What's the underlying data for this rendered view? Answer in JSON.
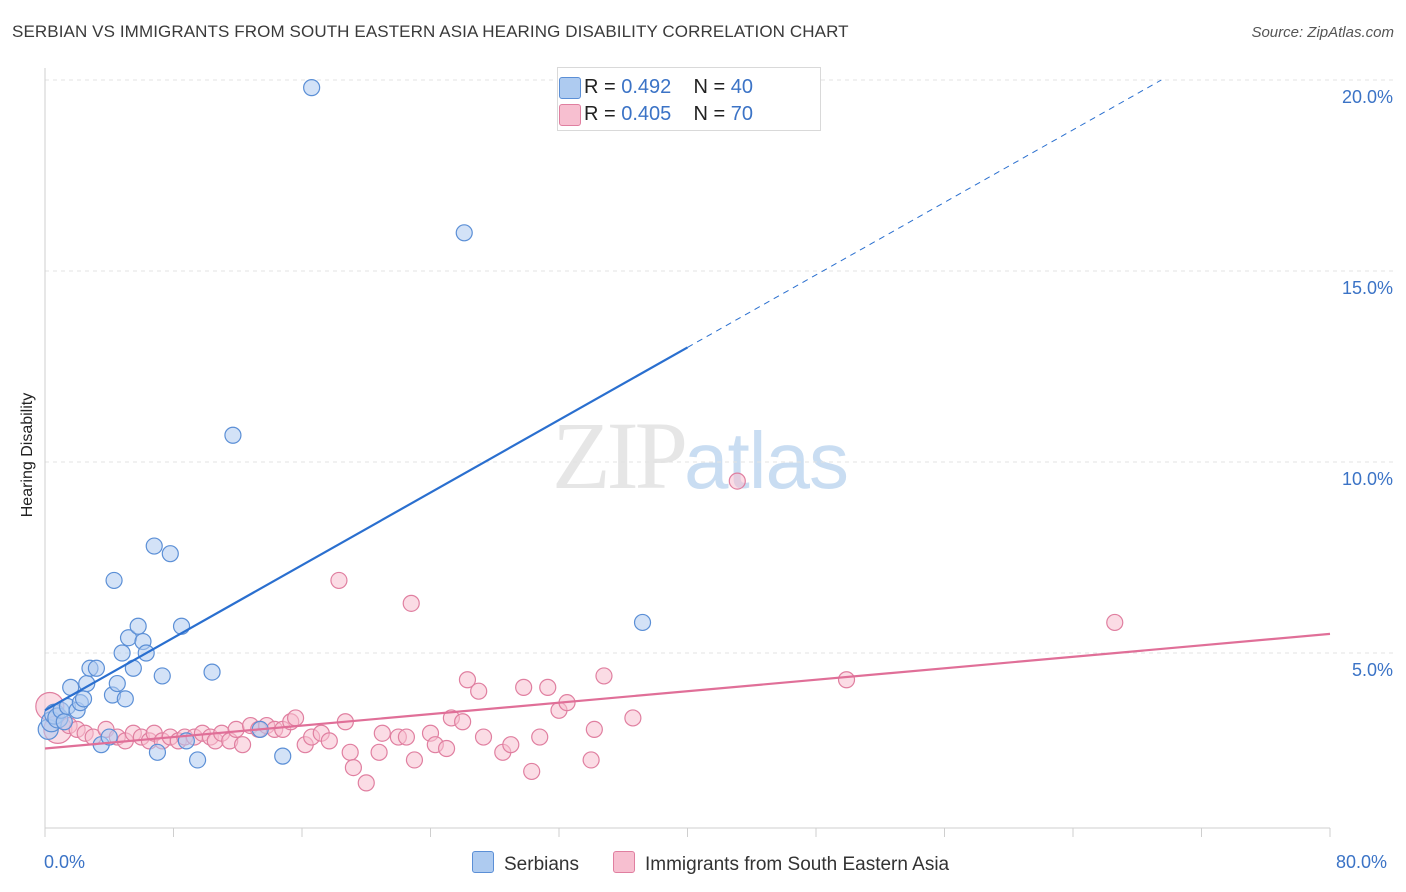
{
  "title": "SERBIAN VS IMMIGRANTS FROM SOUTH EASTERN ASIA HEARING DISABILITY CORRELATION CHART",
  "source": "Source: ZipAtlas.com",
  "watermark": {
    "zip": "ZIP",
    "atlas": "atlas"
  },
  "legend_top": [
    {
      "r_label": "R = ",
      "r_value": "0.492",
      "n_label": "N = ",
      "n_value": "40"
    },
    {
      "r_label": "R = ",
      "r_value": "0.405",
      "n_label": "N = ",
      "n_value": "70"
    }
  ],
  "legend_bottom": [
    "Serbians",
    "Immigrants from South Eastern Asia"
  ],
  "colors": {
    "serbians_fill": "#aecbf0",
    "serbians_stroke": "#5b8fd6",
    "serbians_line": "#2a6fcf",
    "sea_fill": "#f7bfd0",
    "sea_stroke": "#e07fa0",
    "sea_line": "#e06f98",
    "tick_text": "#3b73c6",
    "grid": "#e3e3e3"
  },
  "axes": {
    "ylabel": "Hearing Disability",
    "x_min_label": "0.0%",
    "x_max_label": "80.0%",
    "y_ticks": [
      "5.0%",
      "10.0%",
      "15.0%",
      "20.0%"
    ]
  },
  "chart_data": {
    "type": "scatter",
    "title": "SERBIAN VS IMMIGRANTS FROM SOUTH EASTERN ASIA HEARING DISABILITY CORRELATION CHART",
    "xlabel": "",
    "ylabel": "Hearing Disability",
    "xlim": [
      0,
      80
    ],
    "ylim": [
      0.5,
      20.5
    ],
    "y_gridlines": [
      5,
      10,
      15,
      20
    ],
    "grid": true,
    "legend_placement": "top-center",
    "series": [
      {
        "name": "Serbians",
        "r": 0.492,
        "n": 40,
        "trend": {
          "x0": 0,
          "y0": 3.5,
          "x1": 40,
          "y1": 13.0,
          "dashed_to_x": 69.5,
          "dashed_to_y": 20.0
        },
        "points": [
          [
            0.2,
            3.0
          ],
          [
            0.4,
            3.2
          ],
          [
            0.6,
            3.4
          ],
          [
            0.8,
            3.3
          ],
          [
            1.0,
            3.5
          ],
          [
            1.2,
            3.2
          ],
          [
            1.4,
            3.6
          ],
          [
            1.6,
            4.1
          ],
          [
            2.0,
            3.5
          ],
          [
            2.2,
            3.7
          ],
          [
            2.4,
            3.8
          ],
          [
            2.6,
            4.2
          ],
          [
            2.8,
            4.6
          ],
          [
            3.2,
            4.6
          ],
          [
            3.5,
            2.6
          ],
          [
            4.0,
            2.8
          ],
          [
            4.2,
            3.9
          ],
          [
            4.5,
            4.2
          ],
          [
            4.3,
            6.9
          ],
          [
            4.8,
            5.0
          ],
          [
            5.0,
            3.8
          ],
          [
            5.2,
            5.4
          ],
          [
            5.5,
            4.6
          ],
          [
            5.8,
            5.7
          ],
          [
            6.1,
            5.3
          ],
          [
            6.3,
            5.0
          ],
          [
            6.8,
            7.8
          ],
          [
            7.0,
            2.4
          ],
          [
            7.3,
            4.4
          ],
          [
            7.8,
            7.6
          ],
          [
            8.5,
            5.7
          ],
          [
            8.8,
            2.7
          ],
          [
            9.5,
            2.2
          ],
          [
            10.4,
            4.5
          ],
          [
            11.7,
            10.7
          ],
          [
            13.4,
            3.0
          ],
          [
            14.8,
            2.3
          ],
          [
            16.6,
            19.8
          ],
          [
            26.1,
            16.0
          ],
          [
            37.2,
            5.8
          ]
        ]
      },
      {
        "name": "Immigrants from South Eastern Asia",
        "r": 0.405,
        "n": 70,
        "trend": {
          "x0": 0,
          "y0": 2.5,
          "x1": 80,
          "y1": 5.5
        },
        "points": [
          [
            0.3,
            3.6
          ],
          [
            0.8,
            3.0
          ],
          [
            1.5,
            3.1
          ],
          [
            2.0,
            3.0
          ],
          [
            2.5,
            2.9
          ],
          [
            3.0,
            2.8
          ],
          [
            3.8,
            3.0
          ],
          [
            4.5,
            2.8
          ],
          [
            5.0,
            2.7
          ],
          [
            5.5,
            2.9
          ],
          [
            6.0,
            2.8
          ],
          [
            6.5,
            2.7
          ],
          [
            6.8,
            2.9
          ],
          [
            7.3,
            2.7
          ],
          [
            7.8,
            2.8
          ],
          [
            8.3,
            2.7
          ],
          [
            8.7,
            2.8
          ],
          [
            9.3,
            2.8
          ],
          [
            9.8,
            2.9
          ],
          [
            10.3,
            2.8
          ],
          [
            10.6,
            2.7
          ],
          [
            11.0,
            2.9
          ],
          [
            11.5,
            2.7
          ],
          [
            11.9,
            3.0
          ],
          [
            12.3,
            2.6
          ],
          [
            12.8,
            3.1
          ],
          [
            13.3,
            3.0
          ],
          [
            13.8,
            3.1
          ],
          [
            14.3,
            3.0
          ],
          [
            14.8,
            3.0
          ],
          [
            15.3,
            3.2
          ],
          [
            15.6,
            3.3
          ],
          [
            16.2,
            2.6
          ],
          [
            16.6,
            2.8
          ],
          [
            17.2,
            2.9
          ],
          [
            17.7,
            2.7
          ],
          [
            18.3,
            6.9
          ],
          [
            18.7,
            3.2
          ],
          [
            19.0,
            2.4
          ],
          [
            19.2,
            2.0
          ],
          [
            20.0,
            1.6
          ],
          [
            20.8,
            2.4
          ],
          [
            21.0,
            2.9
          ],
          [
            22.0,
            2.8
          ],
          [
            22.5,
            2.8
          ],
          [
            22.8,
            6.3
          ],
          [
            23.0,
            2.2
          ],
          [
            24.0,
            2.9
          ],
          [
            24.3,
            2.6
          ],
          [
            25.0,
            2.5
          ],
          [
            25.3,
            3.3
          ],
          [
            26.0,
            3.2
          ],
          [
            26.3,
            4.3
          ],
          [
            27.0,
            4.0
          ],
          [
            27.3,
            2.8
          ],
          [
            28.5,
            2.4
          ],
          [
            29.0,
            2.6
          ],
          [
            29.8,
            4.1
          ],
          [
            30.3,
            1.9
          ],
          [
            30.8,
            2.8
          ],
          [
            31.3,
            4.1
          ],
          [
            32.0,
            3.5
          ],
          [
            32.5,
            3.7
          ],
          [
            34.0,
            2.2
          ],
          [
            34.2,
            3.0
          ],
          [
            34.8,
            4.4
          ],
          [
            36.6,
            3.3
          ],
          [
            43.1,
            9.5
          ],
          [
            49.9,
            4.3
          ],
          [
            66.6,
            5.8
          ]
        ]
      }
    ]
  }
}
